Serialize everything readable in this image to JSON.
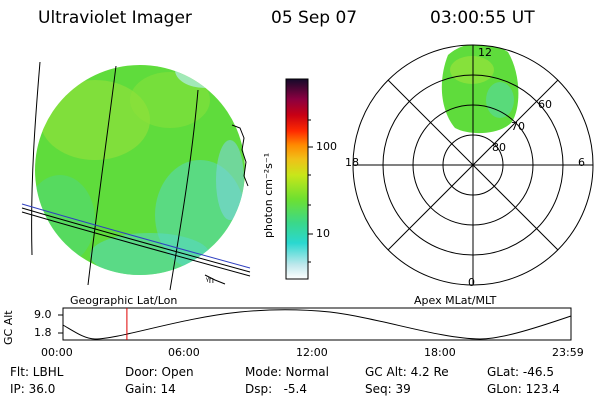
{
  "header": {
    "instrument": "Ultraviolet Imager",
    "date": "05 Sep 07",
    "time": "03:00:55 UT"
  },
  "colorbar": {
    "unit_label": "photon cm⁻²s⁻¹",
    "ticks": [
      "100",
      "10"
    ]
  },
  "left_panel": {
    "label": "Geographic Lat/Lon"
  },
  "right_panel": {
    "label": "Apex MLat/MLT",
    "mlt_labels": {
      "top": "12",
      "left": "18",
      "right": "6",
      "bottom": "0"
    },
    "lat_labels": [
      "60",
      "70",
      "80"
    ]
  },
  "timeline": {
    "ylabel": "GC Alt",
    "ytick_high": "9.0",
    "ytick_low": "1.8",
    "xticks": [
      "00:00",
      "06:00",
      "12:00",
      "18:00",
      "23:59"
    ],
    "marker_time_hours": 3.015
  },
  "info": {
    "row1": {
      "filter": "Flt: LBHL",
      "door": "Door: Open",
      "mode": "Mode: Normal",
      "gc_alt": "GC Alt: 4.2 Re",
      "glat": "GLat: -46.5"
    },
    "row2": {
      "ip": "IP: 36.0",
      "gain": "Gain: 14",
      "dsp": "Dsp:   -5.4",
      "seq": "Seq: 39",
      "glon": "GLon: 123.4"
    }
  },
  "colors": {
    "disk_green": "#5fdc3c",
    "disk_speckle": "#a8e63a",
    "disk_cyan": "#56d8d0",
    "marker": "#e00000"
  }
}
